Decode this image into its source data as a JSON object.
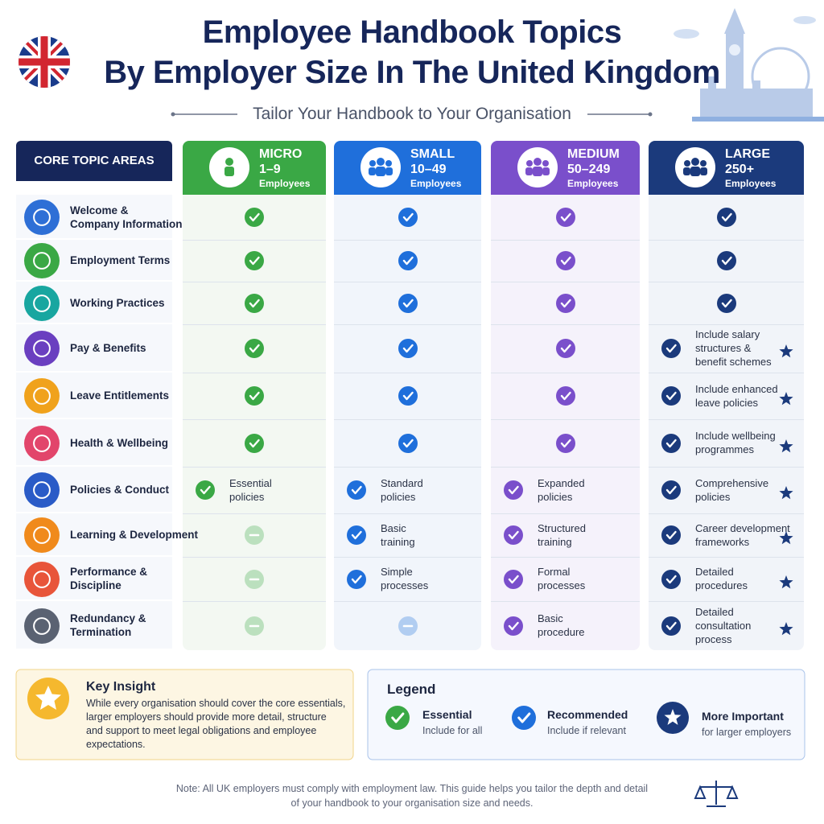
{
  "header": {
    "title_line1": "Employee Handbook Topics",
    "title_line2": "By Employer Size In The United Kingdom",
    "subtitle": "Tailor Your Handbook to Your Organisation"
  },
  "table": {
    "topic_header": "CORE TOPIC AREAS",
    "columns": [
      {
        "name": "MICRO",
        "range": "1–9",
        "unit": "Employees",
        "color": "#3aa845",
        "tint": "#f3f8f2"
      },
      {
        "name": "SMALL",
        "range": "10–49",
        "unit": "Employees",
        "color": "#1f6fdb",
        "tint": "#f1f5fb"
      },
      {
        "name": "MEDIUM",
        "range": "50–249",
        "unit": "Employees",
        "color": "#7a4fcb",
        "tint": "#f5f2fb"
      },
      {
        "name": "LARGE",
        "range": "250+",
        "unit": "Employees",
        "color": "#1b3a7c",
        "tint": "#f1f4f9"
      }
    ],
    "rows": [
      {
        "topic": [
          "Welcome &",
          "Company Information"
        ],
        "color": "#2e6fd6",
        "cells": [
          {
            "mark": "check"
          },
          {
            "mark": "check"
          },
          {
            "mark": "check"
          },
          {
            "mark": "check"
          }
        ]
      },
      {
        "topic": [
          "Employment Terms"
        ],
        "color": "#3aa845",
        "cells": [
          {
            "mark": "check"
          },
          {
            "mark": "check"
          },
          {
            "mark": "check"
          },
          {
            "mark": "check"
          }
        ]
      },
      {
        "topic": [
          "Working Practices"
        ],
        "color": "#18a6a0",
        "cells": [
          {
            "mark": "check"
          },
          {
            "mark": "check"
          },
          {
            "mark": "check"
          },
          {
            "mark": "check"
          }
        ]
      },
      {
        "topic": [
          "Pay & Benefits"
        ],
        "color": "#6a3fc0",
        "cells": [
          {
            "mark": "check"
          },
          {
            "mark": "check"
          },
          {
            "mark": "check"
          },
          {
            "mark": "check",
            "star": true,
            "text": [
              "Include salary",
              "structures &",
              "benefit schemes"
            ]
          }
        ]
      },
      {
        "topic": [
          "Leave Entitlements"
        ],
        "color": "#f0a21c",
        "cells": [
          {
            "mark": "check"
          },
          {
            "mark": "check"
          },
          {
            "mark": "check"
          },
          {
            "mark": "check",
            "star": true,
            "text": [
              "Include enhanced",
              "leave policies"
            ]
          }
        ]
      },
      {
        "topic": [
          "Health & Wellbeing"
        ],
        "color": "#e2456b",
        "cells": [
          {
            "mark": "check"
          },
          {
            "mark": "check"
          },
          {
            "mark": "check"
          },
          {
            "mark": "check",
            "star": true,
            "text": [
              "Include wellbeing",
              "programmes"
            ]
          }
        ]
      },
      {
        "topic": [
          "Policies & Conduct"
        ],
        "color": "#2a5bc7",
        "cells": [
          {
            "mark": "check",
            "text": [
              "Essential",
              "policies"
            ]
          },
          {
            "mark": "check",
            "text": [
              "Standard",
              "policies"
            ]
          },
          {
            "mark": "check",
            "text": [
              "Expanded",
              "policies"
            ]
          },
          {
            "mark": "check",
            "star": true,
            "text": [
              "Comprehensive",
              "policies"
            ]
          }
        ]
      },
      {
        "topic": [
          "Learning & Development"
        ],
        "color": "#f08a1c",
        "cells": [
          {
            "mark": "dash"
          },
          {
            "mark": "check",
            "text": [
              "Basic",
              "training"
            ]
          },
          {
            "mark": "check",
            "text": [
              "Structured",
              "training"
            ]
          },
          {
            "mark": "check",
            "star": true,
            "text": [
              "Career development",
              "frameworks"
            ]
          }
        ]
      },
      {
        "topic": [
          "Performance &",
          "Discipline"
        ],
        "color": "#e8553a",
        "cells": [
          {
            "mark": "dash"
          },
          {
            "mark": "check",
            "text": [
              "Simple",
              "processes"
            ]
          },
          {
            "mark": "check",
            "text": [
              "Formal",
              "processes"
            ]
          },
          {
            "mark": "check",
            "star": true,
            "text": [
              "Detailed",
              "procedures"
            ]
          }
        ]
      },
      {
        "topic": [
          "Redundancy &",
          "Termination"
        ],
        "color": "#5a6272",
        "cells": [
          {
            "mark": "dash"
          },
          {
            "mark": "dash"
          },
          {
            "mark": "check",
            "text": [
              "Basic",
              "procedure"
            ]
          },
          {
            "mark": "check",
            "star": true,
            "text": [
              "Detailed",
              "consultation",
              "process"
            ]
          }
        ]
      }
    ]
  },
  "insight": {
    "title": "Key Insight",
    "text": [
      "While every organisation should cover the core essentials,",
      "larger employers should provide more detail, structure",
      "and support to meet legal obligations and employee",
      "expectations."
    ]
  },
  "legend": {
    "title": "Legend",
    "items": [
      {
        "label": "Essential",
        "note": "Include for all",
        "color": "#3aa845",
        "mark": "check"
      },
      {
        "label": "Recommended",
        "note": "Include if relevant",
        "color": "#1f6fdb",
        "mark": "check"
      },
      {
        "label": "More Important",
        "note": "for larger employers",
        "color": "#1b3a7c",
        "mark": "star"
      }
    ]
  },
  "note": [
    "Note: All UK employers must comply with employment law.  This guide helps you tailor the depth and detail",
    "of your handbook to your organisation size and needs."
  ]
}
